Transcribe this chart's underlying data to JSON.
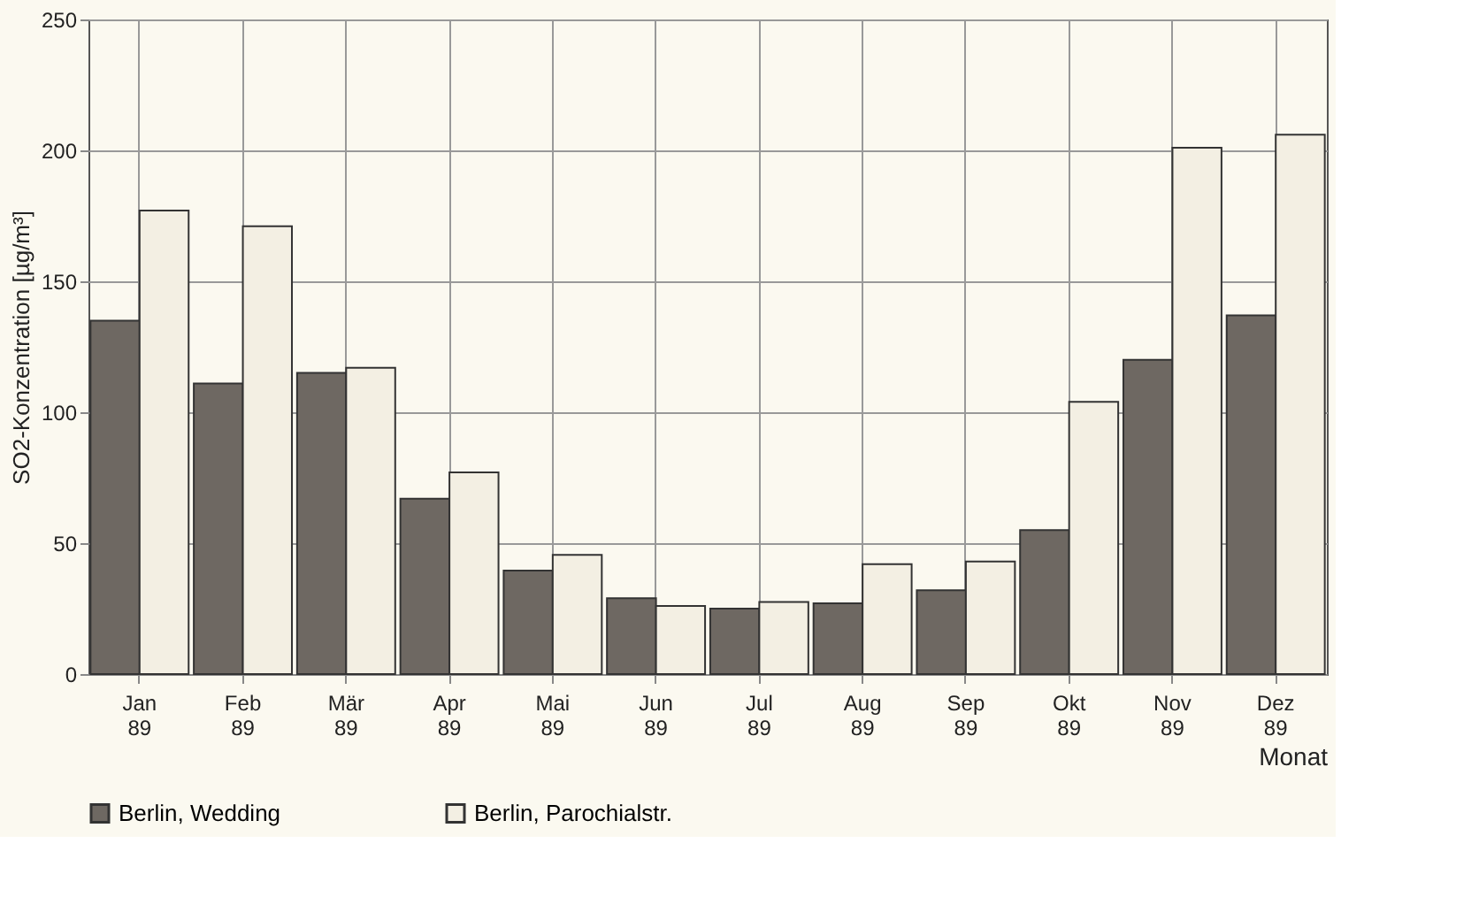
{
  "chart_data": {
    "type": "bar",
    "ylabel": "SO2-Konzentration [µg/m³]",
    "xlabel": "Monat",
    "categories": [
      "Jan 89",
      "Feb 89",
      "Mär 89",
      "Apr 89",
      "Mai 89",
      "Jun 89",
      "Jul 89",
      "Aug 89",
      "Sep 89",
      "Okt 89",
      "Nov 89",
      "Dez 89"
    ],
    "series": [
      {
        "name": "Berlin, Wedding",
        "color": "#6e6862",
        "values": [
          135,
          111,
          115,
          67,
          39.5,
          29,
          25,
          27,
          32,
          55,
          120,
          137
        ]
      },
      {
        "name": "Berlin, Parochialstr.",
        "color": "#f3efe3",
        "values": [
          177,
          171,
          117,
          77,
          45.5,
          26,
          27.5,
          42,
          43,
          104,
          201,
          206
        ]
      }
    ],
    "ylim": [
      0,
      250
    ],
    "yticks": [
      0,
      50,
      100,
      150,
      200,
      250
    ],
    "grid": true,
    "legend": "bottom"
  }
}
